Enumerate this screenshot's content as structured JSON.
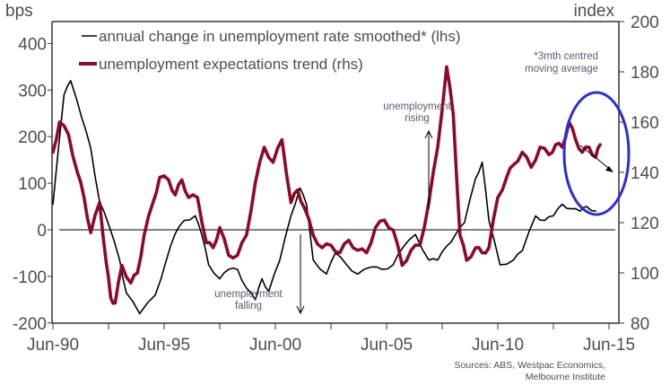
{
  "chart_data": {
    "type": "line",
    "title": "",
    "left_axis": {
      "label": "bps",
      "ticks": [
        "400",
        "300",
        "200",
        "100",
        "0",
        "-100",
        "-200"
      ],
      "tick_values": [
        400,
        300,
        200,
        100,
        0,
        -100,
        -200
      ],
      "range": [
        -200,
        450
      ]
    },
    "right_axis": {
      "label": "index",
      "ticks": [
        "200",
        "180",
        "160",
        "140",
        "120",
        "100",
        "80"
      ],
      "tick_values": [
        200,
        180,
        160,
        140,
        120,
        100,
        80
      ],
      "range": [
        80,
        200
      ]
    },
    "x_axis": {
      "ticks": [
        "Jun-90",
        "Jun-95",
        "Jun-00",
        "Jun-05",
        "Jun-10",
        "Jun-15"
      ],
      "tick_years": [
        1990.5,
        1995.5,
        2000.5,
        2005.5,
        2010.5,
        2015.5
      ],
      "range": [
        1990.5,
        2015.9
      ]
    },
    "grid": false,
    "legend_position": "top-left",
    "series": [
      {
        "name": "annual change in unemployment rate smoothed* (lhs)",
        "axis": "left",
        "color": "#000000",
        "x": [
          1990.5,
          1991.0,
          1991.3,
          1991.3,
          1991.8,
          1992.2,
          1992.6,
          1993.0,
          1993.5,
          1993.8,
          1994.4,
          1995.1,
          1995.6,
          1996.0,
          1996.4,
          1996.9,
          1997.2,
          1997.5,
          1998.0,
          1998.4,
          1998.8,
          1999.2,
          1999.6,
          1999.9,
          2000.2,
          2000.7,
          2001.2,
          2001.6,
          2001.9,
          2002.2,
          2002.8,
          2003.2,
          2003.7,
          2004.2,
          2004.8,
          2005.3,
          2005.8,
          2006.2,
          2006.8,
          2007.4,
          2007.8,
          2008.2,
          2008.6,
          2009.0,
          2009.5,
          2009.8,
          2010.1,
          2010.6,
          2011.2,
          2011.6,
          2012.2,
          2012.6,
          2013.0,
          2013.4,
          2013.8,
          2014.2,
          2014.5,
          2014.9
        ],
        "values": [
          55,
          290,
          320,
          320,
          240,
          175,
          60,
          12,
          -65,
          -135,
          -180,
          -140,
          -65,
          -8,
          20,
          30,
          -12,
          -75,
          -105,
          -85,
          -85,
          -125,
          -150,
          -105,
          -132,
          -65,
          30,
          90,
          55,
          -65,
          -95,
          -50,
          -75,
          -95,
          -80,
          -85,
          -75,
          -40,
          -10,
          -65,
          -65,
          -35,
          -10,
          15,
          110,
          145,
          20,
          -75,
          -65,
          -45,
          30,
          20,
          30,
          55,
          45,
          40,
          50,
          40
        ],
        "shape_hint": "smoothed"
      },
      {
        "name": "unemployment expectations trend (rhs)",
        "axis": "right",
        "color": "#8b0a2a",
        "x": [
          1990.5,
          1990.8,
          1991.2,
          1991.6,
          1991.9,
          1992.2,
          1992.6,
          1992.9,
          1993.1,
          1993.3,
          1993.6,
          1994.0,
          1994.3,
          1994.6,
          1995.0,
          1995.3,
          1995.7,
          1996.0,
          1996.3,
          1996.6,
          1997.0,
          1997.4,
          1997.7,
          1998.0,
          1998.4,
          1998.8,
          1999.2,
          1999.6,
          2000.0,
          2000.4,
          2000.8,
          2001.2,
          2001.5,
          2001.8,
          2002.2,
          2002.6,
          2003.0,
          2003.4,
          2003.8,
          2004.2,
          2004.6,
          2005.0,
          2005.4,
          2005.8,
          2006.2,
          2006.6,
          2007.0,
          2007.4,
          2007.8,
          2008.2,
          2008.5,
          2008.8,
          2009.1,
          2009.5,
          2009.8,
          2010.1,
          2010.5,
          2010.9,
          2011.2,
          2011.6,
          2012.0,
          2012.4,
          2012.8,
          2013.1,
          2013.4,
          2013.7,
          2014.0,
          2014.3,
          2014.6,
          2014.9,
          2015.1
        ],
        "values": [
          148,
          160,
          155,
          140,
          130,
          116,
          128,
          104,
          90,
          88,
          103,
          96,
          100,
          115,
          128,
          138,
          137,
          131,
          137,
          130,
          130,
          112,
          110,
          118,
          107,
          107,
          115,
          136,
          150,
          144,
          153,
          128,
          133,
          126,
          115,
          110,
          111,
          108,
          113,
          109,
          108,
          118,
          121,
          117,
          103,
          109,
          111,
          128,
          150,
          182,
          163,
          115,
          105,
          110,
          108,
          110,
          130,
          138,
          143,
          148,
          142,
          150,
          147,
          151,
          150,
          160,
          153,
          148,
          150,
          146,
          151
        ],
        "shape_hint": "jagged"
      }
    ],
    "annotations": [
      {
        "text_lines": [
          "*3mth centred",
          "moving average"
        ]
      },
      {
        "text_lines": [
          "unemployment",
          "rising"
        ],
        "arrow": "up"
      },
      {
        "text_lines": [
          "unemployment",
          "falling"
        ],
        "arrow": "down"
      },
      {
        "text_lines": [],
        "shape": "blue ellipse highlighting recent period with downward arrow",
        "color": "#2b2ed1"
      }
    ],
    "source_lines": [
      "Sources: ABS, Westpac Economics,",
      "Melbourne Institute"
    ]
  }
}
